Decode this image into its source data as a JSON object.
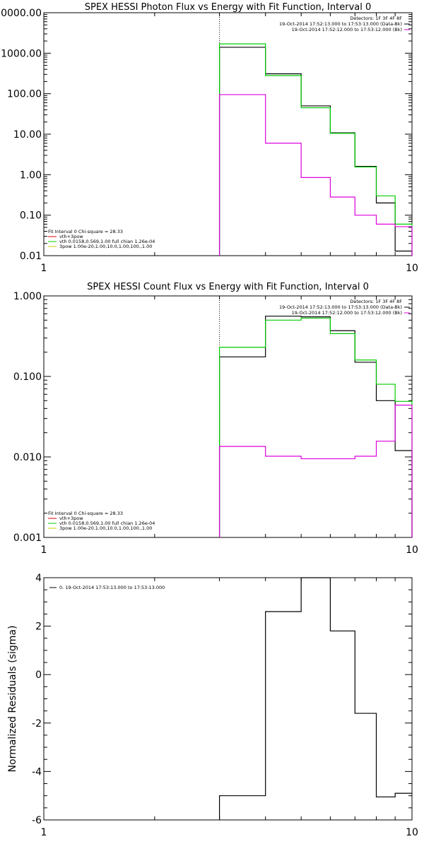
{
  "chart_data": [
    {
      "type": "line",
      "step": true,
      "title": "SPEX HESSI Photon Flux vs Energy with Fit Function, Interval 0",
      "ylabel": "",
      "xlabel": "",
      "xscale": "log",
      "yscale": "log",
      "xlim": [
        1,
        10
      ],
      "ylim": [
        0.01,
        10000
      ],
      "xticks": [
        "1",
        "10"
      ],
      "yticks": [
        "0.01",
        "0.10",
        "1.00",
        "10.00",
        "100.00",
        "1000.00",
        "0000.00"
      ],
      "ytick_values": [
        0.01,
        0.1,
        1,
        10,
        100,
        1000,
        10000
      ],
      "vline_x": 3,
      "legend_top_right": [
        "Detectors: 1F 3F 4F 8F",
        "19-Oct-2014 17:52:13.000 to 17:53:13.000 (Data-Bk)",
        "19-Oct-2014 17:52:12.000 to 17:53:12.000 (Bk)"
      ],
      "legend_bottom_left": [
        "Fit Interval 0   Chi-square = 28.33",
        "vth+3pow",
        "vth 0.0158,0.569,1.00  full chian 1.26e-04",
        "3pow 1.00e-20,1.00,10.0,1.00,100.,1.00"
      ],
      "bin_edges": [
        3,
        4,
        5,
        6,
        7,
        8,
        9,
        10
      ],
      "series": [
        {
          "values": [
            1400,
            310,
            50,
            10.8,
            1.6,
            0.2,
            0.013
          ],
          "color": "#000000"
        },
        {
          "values": [
            1700,
            280,
            45,
            10.5,
            1.55,
            0.3,
            0.06
          ],
          "color": "#00cc00"
        },
        {
          "values": [
            95,
            6,
            0.85,
            0.28,
            0.1,
            0.06,
            0.052
          ],
          "color": "#dd00dd"
        }
      ],
      "legend_colors": [
        "#dd0000",
        "#00cc00",
        "#cccc00"
      ]
    },
    {
      "type": "line",
      "step": true,
      "title": "SPEX HESSI Count Flux vs Energy with Fit Function, Interval 0",
      "ylabel": "",
      "xlabel": "",
      "xscale": "log",
      "yscale": "log",
      "xlim": [
        1,
        10
      ],
      "ylim": [
        0.001,
        1
      ],
      "xticks": [
        "1",
        "10"
      ],
      "yticks": [
        "0.001",
        "0.010",
        "0.100",
        "1.000"
      ],
      "ytick_values": [
        0.001,
        0.01,
        0.1,
        1
      ],
      "vline_x": 3,
      "legend_top_right": [
        "Detectors: 1F 3F 4F 8F",
        "19-Oct-2014 17:52:13.000 to 17:53:13.000 (Data-Bk)",
        "19-Oct-2014 17:52:12.000 to 17:53:12.000 (Bk)"
      ],
      "legend_bottom_left": [
        "Fit Interval 0   Chi-square = 28.33",
        "vth+3pow",
        "vth 0.0158,0.569,1.00  full chian 1.26e-04",
        "3pow 1.00e-20,1.00,10.0,1.00,100.,1.00"
      ],
      "bin_edges": [
        3,
        4,
        5,
        6,
        7,
        8,
        9,
        10
      ],
      "series": [
        {
          "values": [
            0.175,
            0.56,
            0.55,
            0.37,
            0.15,
            0.05,
            0.012
          ],
          "color": "#000000"
        },
        {
          "values": [
            0.23,
            0.5,
            0.53,
            0.34,
            0.16,
            0.08,
            0.049
          ],
          "color": "#00cc00"
        },
        {
          "values": [
            0.0135,
            0.0102,
            0.0095,
            0.0095,
            0.0102,
            0.0157,
            0.044
          ],
          "color": "#dd00dd"
        }
      ],
      "legend_colors": [
        "#dd0000",
        "#00cc00",
        "#cccc00"
      ]
    },
    {
      "type": "line",
      "step": true,
      "title": "",
      "ylabel": "Normalized Residuals (sigma)",
      "xlabel": "",
      "xscale": "log",
      "yscale": "linear",
      "xlim": [
        1,
        10
      ],
      "ylim": [
        -6,
        4
      ],
      "xticks": [
        "1",
        "10"
      ],
      "yticks": [
        "-6",
        "-4",
        "-2",
        "0",
        "2",
        "4"
      ],
      "ytick_values": [
        -6,
        -4,
        -2,
        0,
        2,
        4
      ],
      "legend_top_left": [
        "0. 19-Oct-2014 17:53:13.000 to 17:53:13.000"
      ],
      "bin_edges": [
        3,
        4,
        5,
        6,
        7,
        8,
        9,
        10
      ],
      "series": [
        {
          "values": [
            -5.0,
            2.6,
            4.0,
            1.8,
            -1.6,
            -5.05,
            -4.9
          ],
          "color": "#000000"
        }
      ]
    }
  ]
}
